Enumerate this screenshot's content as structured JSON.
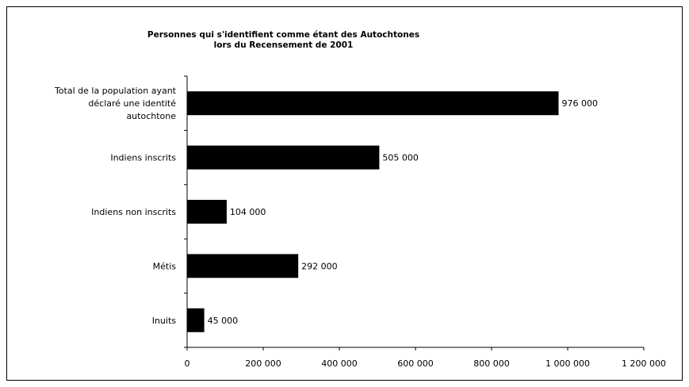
{
  "chart_data": {
    "type": "bar",
    "orientation": "horizontal",
    "title_lines": [
      "Personnes qui s'identifient comme étant des Autochtones",
      "lors du Recensement de 2001"
    ],
    "categories": [
      [
        "Total de la population ayant",
        "déclaré une identité",
        "autochtone"
      ],
      [
        "Indiens inscrits"
      ],
      [
        "Indiens non inscrits"
      ],
      [
        "Métis"
      ],
      [
        "Inuits"
      ]
    ],
    "values": [
      976000,
      505000,
      104000,
      292000,
      45000
    ],
    "data_labels": [
      "976 000",
      "505 000",
      "104 000",
      "292 000",
      "45 000"
    ],
    "xlim": [
      0,
      1200000
    ],
    "xticks": [
      0,
      200000,
      400000,
      600000,
      800000,
      1000000,
      1200000
    ],
    "xtick_labels": [
      "0",
      "200 000",
      "400 000",
      "600 000",
      "800 000",
      "1 000 000",
      "1 200 000"
    ],
    "bar_color": "#000000",
    "grid": false,
    "legend": "none"
  }
}
